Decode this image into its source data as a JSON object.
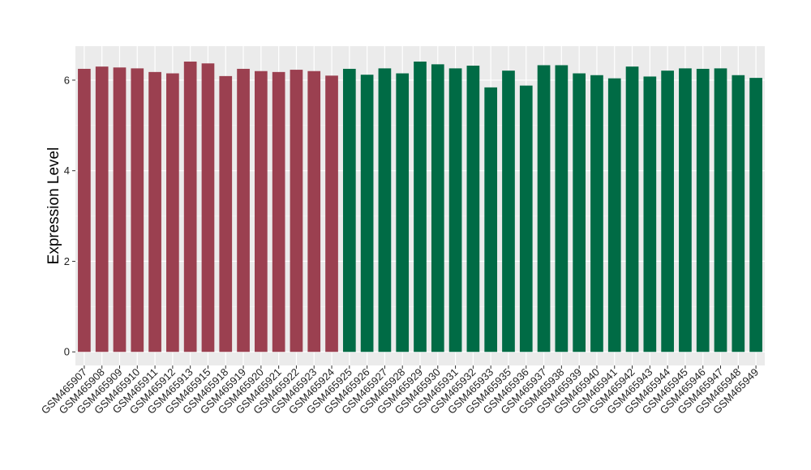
{
  "chart_data": {
    "type": "bar",
    "title": "",
    "xlabel": "",
    "ylabel": "Expression Level",
    "ylim": [
      -0.3,
      6.75
    ],
    "yticks": [
      0,
      2,
      4,
      6
    ],
    "grid": true,
    "background": "#ebebeb",
    "categories": [
      "GSM465907",
      "GSM465908",
      "GSM465909",
      "GSM465910",
      "GSM465911",
      "GSM465912",
      "GSM465913",
      "GSM465915",
      "GSM465918",
      "GSM465919",
      "GSM465920",
      "GSM465921",
      "GSM465922",
      "GSM465923",
      "GSM465924",
      "GSM465925",
      "GSM465926",
      "GSM465927",
      "GSM465928",
      "GSM465929",
      "GSM465930",
      "GSM465931",
      "GSM465932",
      "GSM465933",
      "GSM465935",
      "GSM465936",
      "GSM465937",
      "GSM465938",
      "GSM465939",
      "GSM465940",
      "GSM465941",
      "GSM465942",
      "GSM465943",
      "GSM465944",
      "GSM465945",
      "GSM465946",
      "GSM465947",
      "GSM465948",
      "GSM465949"
    ],
    "values": [
      6.25,
      6.3,
      6.28,
      6.26,
      6.18,
      6.15,
      6.41,
      6.37,
      6.09,
      6.25,
      6.2,
      6.18,
      6.23,
      6.2,
      6.1,
      6.25,
      6.12,
      6.26,
      6.15,
      6.41,
      6.35,
      6.26,
      6.32,
      5.84,
      6.21,
      5.88,
      6.33,
      6.33,
      6.15,
      6.11,
      6.04,
      6.3,
      6.08,
      6.21,
      6.26,
      6.25,
      6.26,
      6.11,
      6.05
    ],
    "groups": [
      {
        "color": "#9b4050",
        "count": 15
      },
      {
        "color": "#006b45",
        "count": 24
      }
    ]
  }
}
